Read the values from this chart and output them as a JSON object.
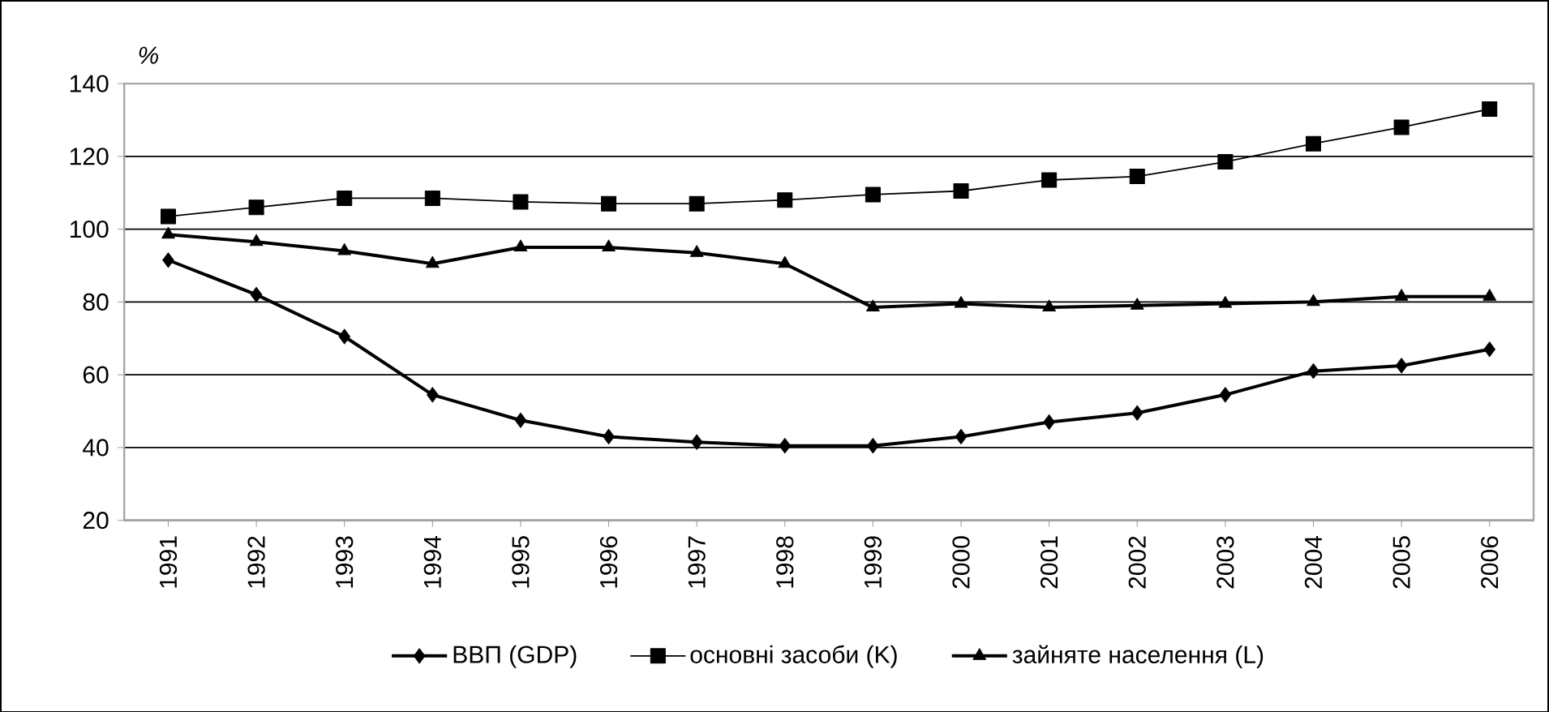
{
  "chart_data": {
    "type": "line",
    "ylabel": "%",
    "categories": [
      "1991",
      "1992",
      "1993",
      "1994",
      "1995",
      "1996",
      "1997",
      "1998",
      "1999",
      "2000",
      "2001",
      "2002",
      "2003",
      "2004",
      "2005",
      "2006"
    ],
    "series": [
      {
        "name": "ВВП (GDP)",
        "color": "#000000",
        "marker": "diamond",
        "values": [
          91.5,
          82,
          70.5,
          54.5,
          47.5,
          43,
          41.5,
          40.5,
          40.5,
          43,
          47,
          49.5,
          54.5,
          61,
          62.5,
          67
        ]
      },
      {
        "name": "основні засоби (K)",
        "color": "#000000",
        "marker": "square",
        "values": [
          103.5,
          106,
          108.5,
          108.5,
          107.5,
          107,
          107,
          108,
          109.5,
          110.5,
          113.5,
          114.5,
          118.5,
          123.5,
          128,
          133
        ]
      },
      {
        "name": "зайняте населення (L)",
        "color": "#000000",
        "marker": "triangle",
        "values": [
          98.5,
          96.5,
          94,
          90.5,
          95,
          95,
          93.5,
          90.5,
          78.5,
          79.5,
          78.5,
          79,
          79.5,
          80,
          81.5,
          81.5
        ]
      }
    ],
    "ylim": [
      20,
      140
    ],
    "yticks": [
      20,
      40,
      60,
      80,
      100,
      120,
      140
    ],
    "grid": "y",
    "legend": "bottom",
    "line_style": "solid"
  }
}
